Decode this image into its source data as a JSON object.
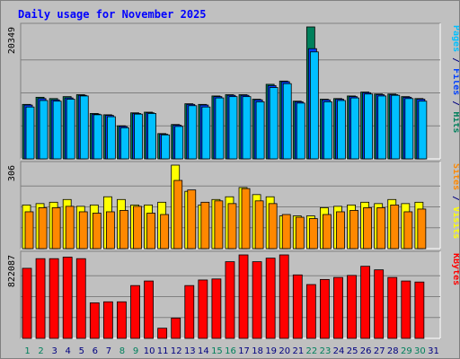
{
  "chart_data": {
    "type": "bar",
    "title": "Daily usage for November 2025",
    "categories": [
      "1",
      "2",
      "3",
      "4",
      "5",
      "6",
      "7",
      "8",
      "9",
      "10",
      "11",
      "12",
      "13",
      "14",
      "15",
      "16",
      "17",
      "18",
      "19",
      "20",
      "21",
      "22",
      "23",
      "24",
      "25",
      "26",
      "27",
      "28",
      "29",
      "30",
      "31"
    ],
    "weekend_days": [
      "1",
      "2",
      "8",
      "9",
      "15",
      "16",
      "22",
      "23",
      "29",
      "30"
    ],
    "panels": [
      {
        "id": "hits-files-pages",
        "max_label": "20349",
        "ymax": 20349,
        "legend": [
          "Pages",
          "Files",
          "Hits"
        ],
        "legend_colors": [
          "#00c0ff",
          "#0040ff",
          "#00805c"
        ],
        "series": [
          {
            "name": "Hits",
            "color": "#00805c",
            "values": [
              8400,
              9500,
              9300,
              9600,
              9900,
              7000,
              6800,
              5100,
              7100,
              7200,
              3900,
              5300,
              8500,
              8400,
              9700,
              9900,
              9900,
              9200,
              11500,
              12000,
              8900,
              20349,
              9200,
              9300,
              9700,
              10300,
              10000,
              10000,
              9600,
              9300,
              0
            ]
          },
          {
            "name": "Files",
            "color": "#0040ff",
            "values": [
              8300,
              9300,
              9100,
              9400,
              9800,
              6900,
              6700,
              5000,
              7000,
              7100,
              3800,
              5200,
              8400,
              8300,
              9600,
              9800,
              9800,
              9100,
              11300,
              11900,
              8800,
              17000,
              9100,
              9200,
              9600,
              10200,
              9900,
              9900,
              9500,
              9200,
              0
            ]
          },
          {
            "name": "Pages",
            "color": "#00c0ff",
            "values": [
              8000,
              9000,
              8900,
              9200,
              9700,
              6800,
              6500,
              4800,
              6900,
              7000,
              3700,
              5000,
              8200,
              8000,
              9400,
              9600,
              9600,
              8800,
              11000,
              11600,
              8600,
              16500,
              8800,
              9000,
              9400,
              10000,
              9700,
              9800,
              9300,
              8900,
              0
            ]
          }
        ],
        "ylabel_parts": [
          {
            "text": "Pages",
            "color": "#00c0ff"
          },
          {
            "text": " / ",
            "color": "#000080"
          },
          {
            "text": "Files",
            "color": "#0040ff"
          },
          {
            "text": " / ",
            "color": "#000080"
          },
          {
            "text": "Hits",
            "color": "#00805c"
          }
        ]
      },
      {
        "id": "visits-sites",
        "max_label": "306",
        "ymax": 306,
        "series": [
          {
            "name": "Visits",
            "color": "#ffff00",
            "values": [
              160,
              165,
              170,
              180,
              155,
              160,
              190,
              180,
              160,
              160,
              170,
              306,
              210,
              160,
              180,
              190,
              224,
              198,
              190,
              120,
              120,
              120,
              150,
              155,
              160,
              170,
              165,
              180,
              165,
              170,
              0
            ]
          },
          {
            "name": "Sites",
            "color": "#ff8800",
            "values": [
              135,
              150,
              150,
              155,
              135,
              130,
              135,
              140,
              155,
              130,
              125,
              250,
              215,
              170,
              175,
              165,
              220,
              175,
              165,
              125,
              115,
              110,
              125,
              135,
              140,
              150,
              150,
              160,
              135,
              145,
              0
            ]
          }
        ],
        "ylabel_parts": [
          {
            "text": "Sites",
            "color": "#ff8800"
          },
          {
            "text": " / ",
            "color": "#000080"
          },
          {
            "text": "Visits",
            "color": "#ffff00"
          }
        ]
      },
      {
        "id": "kbytes",
        "max_label": "822087",
        "ymax": 822087,
        "series": [
          {
            "name": "KBytes",
            "color": "#ff0000",
            "values": [
              690000,
              785000,
              785000,
              800000,
              785000,
              350000,
              360000,
              360000,
              520000,
              565000,
              100000,
              200000,
              520000,
              575000,
              585000,
              755000,
              822087,
              755000,
              790000,
              822087,
              625000,
              530000,
              580000,
              600000,
              620000,
              710000,
              675000,
              600000,
              565000,
              555000,
              0
            ]
          }
        ],
        "ylabel_parts": [
          {
            "text": "KBytes",
            "color": "#ff0000"
          }
        ]
      }
    ],
    "colors": {
      "background": "#c0c0c0",
      "plot_background": "#c0c0c0",
      "title": "#0000ff",
      "weekday_label": "#000080",
      "weekend_label": "#00805c"
    }
  }
}
